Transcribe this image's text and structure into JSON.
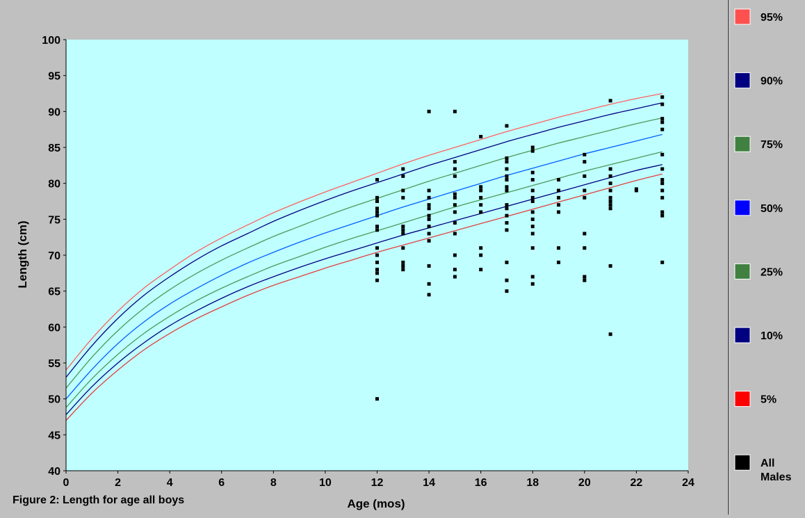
{
  "chart_data": {
    "type": "scatter",
    "title": "",
    "caption": "Figure 2: Length for age all boys",
    "xlabel": "Age (mos)",
    "ylabel": "Length (cm)",
    "xlim": [
      0,
      24
    ],
    "ylim": [
      40,
      100
    ],
    "xticks": [
      0,
      2,
      4,
      6,
      8,
      10,
      12,
      14,
      16,
      18,
      20,
      22,
      24
    ],
    "yticks": [
      40,
      45,
      50,
      55,
      60,
      65,
      70,
      75,
      80,
      85,
      90,
      95,
      100
    ],
    "grid": false,
    "legend_position": "right",
    "plot_background": "#c0ffff",
    "page_background": "#c0c0c0",
    "curve_x": [
      0,
      1,
      2,
      3,
      4,
      5,
      6,
      7,
      8,
      9,
      10,
      11,
      12,
      13,
      14,
      15,
      16,
      17,
      18,
      19,
      20,
      21,
      22,
      23
    ],
    "series": [
      {
        "name": "95%",
        "color": "#ff6060",
        "legend_color": "#ff5050",
        "y": [
          54.0,
          58.4,
          62.2,
          65.4,
          68.0,
          70.4,
          72.4,
          74.2,
          75.9,
          77.4,
          78.8,
          80.1,
          81.4,
          82.7,
          83.9,
          85.0,
          86.1,
          87.2,
          88.2,
          89.2,
          90.1,
          91.0,
          91.8,
          92.5
        ]
      },
      {
        "name": "90%",
        "color": "#000080",
        "legend_color": "#000080",
        "y": [
          53.0,
          57.4,
          61.2,
          64.4,
          67.0,
          69.3,
          71.3,
          73.0,
          74.7,
          76.2,
          77.6,
          78.9,
          80.1,
          81.3,
          82.5,
          83.6,
          84.7,
          85.8,
          86.8,
          87.8,
          88.7,
          89.6,
          90.4,
          91.2
        ]
      },
      {
        "name": "75%",
        "color": "#4a9a5a",
        "legend_color": "#408040",
        "y": [
          51.5,
          55.8,
          59.5,
          62.6,
          65.2,
          67.4,
          69.3,
          71.0,
          72.6,
          74.0,
          75.4,
          76.7,
          77.9,
          79.1,
          80.3,
          81.4,
          82.5,
          83.6,
          84.6,
          85.6,
          86.5,
          87.4,
          88.3,
          89.1
        ]
      },
      {
        "name": "50%",
        "color": "#0060ff",
        "legend_color": "#0000ff",
        "y": [
          50.0,
          54.1,
          57.7,
          60.7,
          63.2,
          65.3,
          67.2,
          68.9,
          70.4,
          71.8,
          73.1,
          74.3,
          75.5,
          76.7,
          77.8,
          78.9,
          80.0,
          81.1,
          82.1,
          83.1,
          84.1,
          85.0,
          85.9,
          86.8
        ]
      },
      {
        "name": "25%",
        "color": "#4a9a5a",
        "legend_color": "#408040",
        "y": [
          48.8,
          52.8,
          56.2,
          59.1,
          61.5,
          63.6,
          65.4,
          67.0,
          68.5,
          69.8,
          71.1,
          72.3,
          73.4,
          74.5,
          75.6,
          76.7,
          77.7,
          78.7,
          79.7,
          80.7,
          81.7,
          82.6,
          83.5,
          84.4
        ]
      },
      {
        "name": "10%",
        "color": "#000080",
        "legend_color": "#000080",
        "y": [
          47.8,
          51.7,
          55.0,
          57.8,
          60.2,
          62.2,
          64.0,
          65.6,
          67.0,
          68.3,
          69.5,
          70.6,
          71.7,
          72.8,
          73.8,
          74.8,
          75.8,
          76.8,
          77.8,
          78.8,
          79.8,
          80.8,
          81.8,
          82.6
        ]
      },
      {
        "name": "5%",
        "color": "#e04040",
        "legend_color": "#ff0000",
        "y": [
          47.0,
          50.8,
          54.0,
          56.8,
          59.1,
          61.1,
          62.8,
          64.4,
          65.8,
          67.0,
          68.2,
          69.3,
          70.4,
          71.4,
          72.4,
          73.4,
          74.4,
          75.4,
          76.4,
          77.4,
          78.4,
          79.4,
          80.4,
          81.3
        ]
      }
    ],
    "legend": [
      {
        "label": "95%",
        "color": "#ff5050"
      },
      {
        "label": "90%",
        "color": "#000080"
      },
      {
        "label": "75%",
        "color": "#408040"
      },
      {
        "label": "50%",
        "color": "#0000ff"
      },
      {
        "label": "25%",
        "color": "#408040"
      },
      {
        "label": "10%",
        "color": "#000080"
      },
      {
        "label": "5%",
        "color": "#ff0000"
      },
      {
        "label": "All Males",
        "color": "#000000"
      }
    ],
    "scatter_series": {
      "name": "All Males",
      "color": "#000000",
      "points": [
        [
          12,
          80.5
        ],
        [
          12,
          78
        ],
        [
          12,
          77.5
        ],
        [
          12,
          76.5
        ],
        [
          12,
          76
        ],
        [
          12,
          75.5
        ],
        [
          12,
          74
        ],
        [
          12,
          73.5
        ],
        [
          12,
          71
        ],
        [
          12,
          70
        ],
        [
          12,
          69
        ],
        [
          12,
          68
        ],
        [
          12,
          67.5
        ],
        [
          12,
          66.5
        ],
        [
          12,
          50
        ],
        [
          13,
          82
        ],
        [
          13,
          81
        ],
        [
          13,
          79
        ],
        [
          13,
          78
        ],
        [
          13,
          74
        ],
        [
          13,
          73.5
        ],
        [
          13,
          73
        ],
        [
          13,
          71
        ],
        [
          13,
          69
        ],
        [
          13,
          68.5
        ],
        [
          13,
          68
        ],
        [
          14,
          90
        ],
        [
          14,
          79
        ],
        [
          14,
          78
        ],
        [
          14,
          77
        ],
        [
          14,
          76.5
        ],
        [
          14,
          75.5
        ],
        [
          14,
          75
        ],
        [
          14,
          74
        ],
        [
          14,
          73
        ],
        [
          14,
          72
        ],
        [
          14,
          68.5
        ],
        [
          14,
          66
        ],
        [
          14,
          64.5
        ],
        [
          15,
          90
        ],
        [
          15,
          83
        ],
        [
          15,
          82
        ],
        [
          15,
          81
        ],
        [
          15,
          78.5
        ],
        [
          15,
          78
        ],
        [
          15,
          77
        ],
        [
          15,
          76
        ],
        [
          15,
          74.5
        ],
        [
          15,
          73
        ],
        [
          15,
          70
        ],
        [
          15,
          68
        ],
        [
          15,
          67
        ],
        [
          16,
          86.5
        ],
        [
          16,
          79.5
        ],
        [
          16,
          79
        ],
        [
          16,
          78
        ],
        [
          16,
          77
        ],
        [
          16,
          76
        ],
        [
          16,
          71
        ],
        [
          16,
          70
        ],
        [
          16,
          68
        ],
        [
          17,
          88
        ],
        [
          17,
          83.5
        ],
        [
          17,
          83
        ],
        [
          17,
          82
        ],
        [
          17,
          81
        ],
        [
          17,
          80.5
        ],
        [
          17,
          79.5
        ],
        [
          17,
          79
        ],
        [
          17,
          77
        ],
        [
          17,
          76.5
        ],
        [
          17,
          75.5
        ],
        [
          17,
          74.5
        ],
        [
          17,
          73.5
        ],
        [
          17,
          69
        ],
        [
          17,
          66.5
        ],
        [
          17,
          65
        ],
        [
          18,
          85
        ],
        [
          18,
          84.5
        ],
        [
          18,
          81.5
        ],
        [
          18,
          80.5
        ],
        [
          18,
          79
        ],
        [
          18,
          78
        ],
        [
          18,
          77.5
        ],
        [
          18,
          76
        ],
        [
          18,
          75
        ],
        [
          18,
          74
        ],
        [
          18,
          73
        ],
        [
          18,
          71
        ],
        [
          18,
          67
        ],
        [
          18,
          66
        ],
        [
          19,
          80.5
        ],
        [
          19,
          79
        ],
        [
          19,
          78
        ],
        [
          19,
          77
        ],
        [
          19,
          76
        ],
        [
          19,
          71
        ],
        [
          19,
          69
        ],
        [
          20,
          84
        ],
        [
          20,
          83
        ],
        [
          20,
          81
        ],
        [
          20,
          79
        ],
        [
          20,
          78
        ],
        [
          20,
          73
        ],
        [
          20,
          71
        ],
        [
          20,
          67
        ],
        [
          20,
          66.5
        ],
        [
          21,
          91.5
        ],
        [
          21,
          82
        ],
        [
          21,
          81
        ],
        [
          21,
          80
        ],
        [
          21,
          79
        ],
        [
          21,
          78
        ],
        [
          21,
          77.5
        ],
        [
          21,
          77
        ],
        [
          21,
          76.5
        ],
        [
          21,
          68.5
        ],
        [
          21,
          59
        ],
        [
          22,
          79.2
        ],
        [
          22,
          79
        ],
        [
          23,
          92
        ],
        [
          23,
          91
        ],
        [
          23,
          89
        ],
        [
          23,
          88.5
        ],
        [
          23,
          87.5
        ],
        [
          23,
          84
        ],
        [
          23,
          82
        ],
        [
          23,
          80.5
        ],
        [
          23,
          80
        ],
        [
          23,
          79
        ],
        [
          23,
          78
        ],
        [
          23,
          76
        ],
        [
          23,
          75.5
        ],
        [
          23,
          69
        ]
      ]
    }
  }
}
